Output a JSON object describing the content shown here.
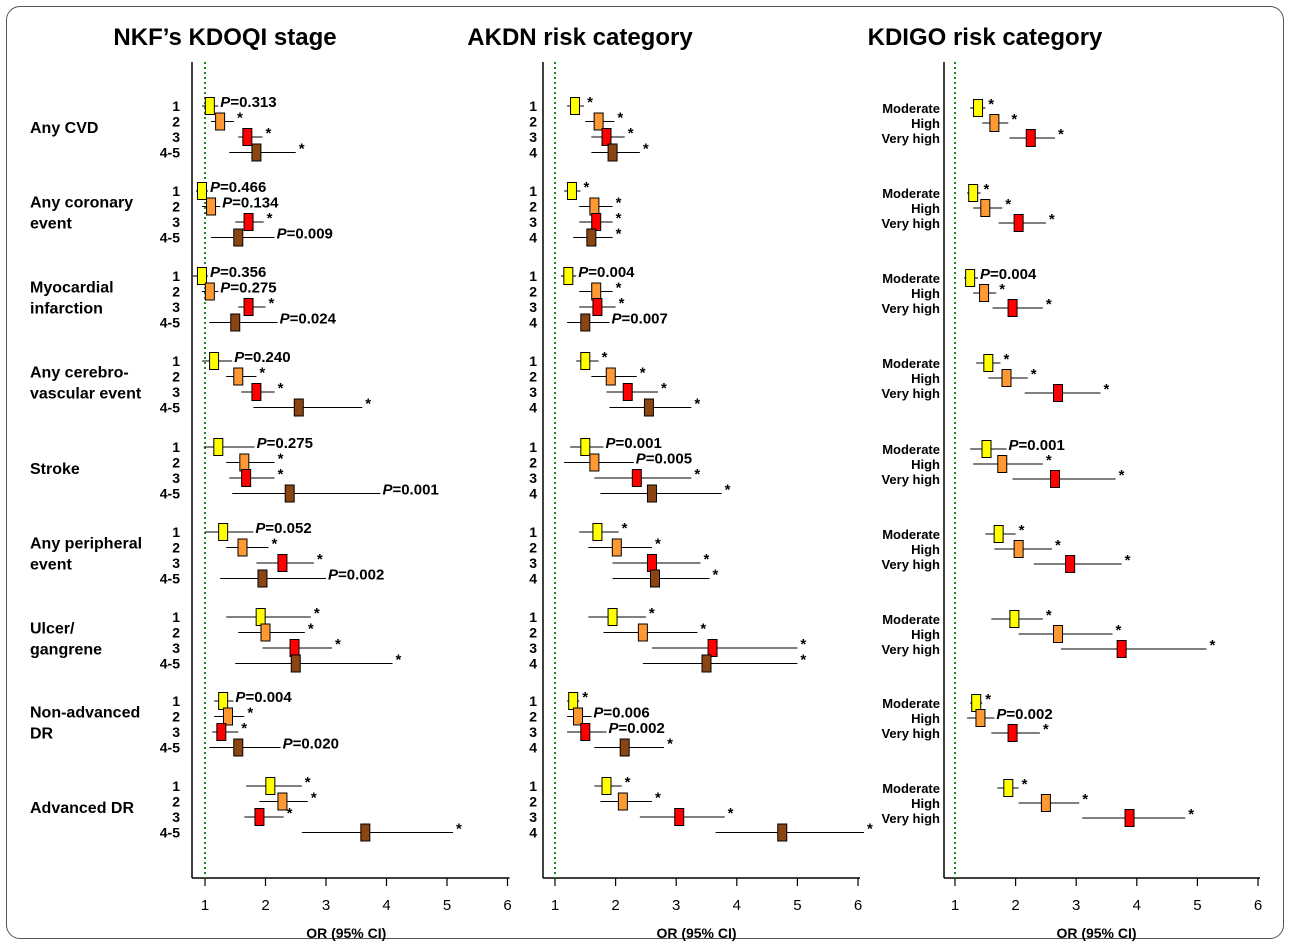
{
  "chart_data": {
    "type": "forest",
    "x_label": "OR (95%  CI)",
    "x_ticks": [
      1,
      2,
      3,
      4,
      5,
      6
    ],
    "outcomes": [
      "Any CVD",
      "Any coronary\nevent",
      "Myocardial\ninfarction",
      "Any cerebro-\nvascular event",
      "Stroke",
      "Any peripheral\nevent",
      "Ulcer/\ngangrene",
      "Non-advanced\nDR",
      "Advanced DR"
    ],
    "panels": [
      {
        "title": "NKF’s KDOQI stage",
        "row_labels": [
          "1",
          "2",
          "3",
          "4-5"
        ],
        "colors": [
          "#ffff00",
          "#ff9933",
          "#ff0000",
          "#8b4513"
        ],
        "reference_line": 1,
        "xlim": [
          0.8,
          6
        ],
        "outcomes": [
          {
            "rows": [
              {
                "or": 1.08,
                "lo": 0.95,
                "hi": 1.22,
                "ann": "P=0.313"
              },
              {
                "or": 1.25,
                "lo": 1.1,
                "hi": 1.48,
                "ann": "*"
              },
              {
                "or": 1.7,
                "lo": 1.55,
                "hi": 1.95,
                "ann": "*"
              },
              {
                "or": 1.85,
                "lo": 1.4,
                "hi": 2.5,
                "ann": "*"
              }
            ]
          },
          {
            "rows": [
              {
                "or": 0.95,
                "lo": 0.85,
                "hi": 1.05,
                "ann": "P=0.466"
              },
              {
                "or": 1.1,
                "lo": 0.95,
                "hi": 1.25,
                "ann": "P=0.134"
              },
              {
                "or": 1.72,
                "lo": 1.5,
                "hi": 1.97,
                "ann": "*"
              },
              {
                "or": 1.55,
                "lo": 1.1,
                "hi": 2.15,
                "ann": "P=0.009"
              }
            ]
          },
          {
            "rows": [
              {
                "or": 0.95,
                "lo": 0.8,
                "hi": 1.05,
                "ann": "P=0.356"
              },
              {
                "or": 1.08,
                "lo": 0.95,
                "hi": 1.22,
                "ann": "P=0.275"
              },
              {
                "or": 1.72,
                "lo": 1.55,
                "hi": 2.0,
                "ann": "*"
              },
              {
                "or": 1.5,
                "lo": 1.07,
                "hi": 2.2,
                "ann": "P=0.024"
              }
            ]
          },
          {
            "rows": [
              {
                "or": 1.15,
                "lo": 0.95,
                "hi": 1.45,
                "ann": "P=0.240"
              },
              {
                "or": 1.55,
                "lo": 1.35,
                "hi": 1.85,
                "ann": "*"
              },
              {
                "or": 1.85,
                "lo": 1.6,
                "hi": 2.15,
                "ann": "*"
              },
              {
                "or": 2.55,
                "lo": 1.8,
                "hi": 3.6,
                "ann": "*"
              }
            ]
          },
          {
            "rows": [
              {
                "or": 1.22,
                "lo": 0.98,
                "hi": 1.82,
                "ann": "P=0.275"
              },
              {
                "or": 1.65,
                "lo": 1.35,
                "hi": 2.15,
                "ann": "*"
              },
              {
                "or": 1.68,
                "lo": 1.4,
                "hi": 2.15,
                "ann": "*"
              },
              {
                "or": 2.4,
                "lo": 1.45,
                "hi": 3.9,
                "ann": "P=0.001"
              }
            ]
          },
          {
            "rows": [
              {
                "or": 1.3,
                "lo": 1.0,
                "hi": 1.8,
                "ann": "P=0.052"
              },
              {
                "or": 1.62,
                "lo": 1.35,
                "hi": 2.05,
                "ann": "*"
              },
              {
                "or": 2.28,
                "lo": 1.85,
                "hi": 2.8,
                "ann": "*"
              },
              {
                "or": 1.95,
                "lo": 1.25,
                "hi": 3.0,
                "ann": "P=0.002"
              }
            ]
          },
          {
            "rows": [
              {
                "or": 1.92,
                "lo": 1.35,
                "hi": 2.75,
                "ann": "*"
              },
              {
                "or": 2.0,
                "lo": 1.55,
                "hi": 2.65,
                "ann": "*"
              },
              {
                "or": 2.48,
                "lo": 1.95,
                "hi": 3.1,
                "ann": "*"
              },
              {
                "or": 2.5,
                "lo": 1.5,
                "hi": 4.1,
                "ann": "*"
              }
            ]
          },
          {
            "rows": [
              {
                "or": 1.3,
                "lo": 1.15,
                "hi": 1.47,
                "ann": "P=0.004"
              },
              {
                "or": 1.38,
                "lo": 1.15,
                "hi": 1.65,
                "ann": "*"
              },
              {
                "or": 1.27,
                "lo": 1.12,
                "hi": 1.55,
                "ann": "*"
              },
              {
                "or": 1.55,
                "lo": 1.07,
                "hi": 2.25,
                "ann": "P=0.020"
              }
            ]
          },
          {
            "rows": [
              {
                "or": 2.08,
                "lo": 1.68,
                "hi": 2.6,
                "ann": "*"
              },
              {
                "or": 2.28,
                "lo": 1.9,
                "hi": 2.7,
                "ann": "*"
              },
              {
                "or": 1.9,
                "lo": 1.65,
                "hi": 2.3,
                "ann": "*"
              },
              {
                "or": 3.65,
                "lo": 2.6,
                "hi": 5.1,
                "ann": "*"
              }
            ]
          }
        ]
      },
      {
        "title": "AKDN risk category",
        "row_labels": [
          "1",
          "2",
          "3",
          "4"
        ],
        "colors": [
          "#ffff00",
          "#ff9933",
          "#ff0000",
          "#8b4513"
        ],
        "reference_line": 1,
        "xlim": [
          0.8,
          6.1
        ],
        "outcomes": [
          {
            "rows": [
              {
                "or": 1.33,
                "lo": 1.2,
                "hi": 1.48,
                "ann": "*"
              },
              {
                "or": 1.72,
                "lo": 1.5,
                "hi": 1.98,
                "ann": "*"
              },
              {
                "or": 1.85,
                "lo": 1.6,
                "hi": 2.15,
                "ann": "*"
              },
              {
                "or": 1.95,
                "lo": 1.6,
                "hi": 2.4,
                "ann": "*"
              }
            ]
          },
          {
            "rows": [
              {
                "or": 1.28,
                "lo": 1.15,
                "hi": 1.42,
                "ann": "*"
              },
              {
                "or": 1.65,
                "lo": 1.4,
                "hi": 1.95,
                "ann": "*"
              },
              {
                "or": 1.68,
                "lo": 1.4,
                "hi": 1.95,
                "ann": "*"
              },
              {
                "or": 1.6,
                "lo": 1.3,
                "hi": 1.95,
                "ann": "*"
              }
            ]
          },
          {
            "rows": [
              {
                "or": 1.22,
                "lo": 1.1,
                "hi": 1.35,
                "ann": "P=0.004"
              },
              {
                "or": 1.68,
                "lo": 1.4,
                "hi": 1.95,
                "ann": "*"
              },
              {
                "or": 1.7,
                "lo": 1.4,
                "hi": 2.0,
                "ann": "*"
              },
              {
                "or": 1.5,
                "lo": 1.2,
                "hi": 1.9,
                "ann": "P=0.007"
              }
            ]
          },
          {
            "rows": [
              {
                "or": 1.5,
                "lo": 1.35,
                "hi": 1.72,
                "ann": "*"
              },
              {
                "or": 1.92,
                "lo": 1.6,
                "hi": 2.35,
                "ann": "*"
              },
              {
                "or": 2.2,
                "lo": 1.85,
                "hi": 2.7,
                "ann": "*"
              },
              {
                "or": 2.55,
                "lo": 1.9,
                "hi": 3.25,
                "ann": "*"
              }
            ]
          },
          {
            "rows": [
              {
                "or": 1.5,
                "lo": 1.25,
                "hi": 1.8,
                "ann": "P=0.001"
              },
              {
                "or": 1.65,
                "lo": 1.15,
                "hi": 2.3,
                "ann": "P=0.005"
              },
              {
                "or": 2.35,
                "lo": 1.65,
                "hi": 3.25,
                "ann": "*"
              },
              {
                "or": 2.6,
                "lo": 1.75,
                "hi": 3.75,
                "ann": "*"
              }
            ]
          },
          {
            "rows": [
              {
                "or": 1.7,
                "lo": 1.4,
                "hi": 2.05,
                "ann": "*"
              },
              {
                "or": 2.02,
                "lo": 1.55,
                "hi": 2.6,
                "ann": "*"
              },
              {
                "or": 2.6,
                "lo": 1.95,
                "hi": 3.4,
                "ann": "*"
              },
              {
                "or": 2.65,
                "lo": 1.95,
                "hi": 3.55,
                "ann": "*"
              }
            ]
          },
          {
            "rows": [
              {
                "or": 1.95,
                "lo": 1.55,
                "hi": 2.5,
                "ann": "*"
              },
              {
                "or": 2.45,
                "lo": 1.8,
                "hi": 3.35,
                "ann": "*"
              },
              {
                "or": 3.6,
                "lo": 2.6,
                "hi": 5.0,
                "ann": "*"
              },
              {
                "or": 3.5,
                "lo": 2.45,
                "hi": 5.0,
                "ann": "*"
              }
            ]
          },
          {
            "rows": [
              {
                "or": 1.3,
                "lo": 1.2,
                "hi": 1.4,
                "ann": "*"
              },
              {
                "or": 1.38,
                "lo": 1.2,
                "hi": 1.6,
                "ann": "P=0.006"
              },
              {
                "or": 1.5,
                "lo": 1.2,
                "hi": 1.85,
                "ann": "P=0.002"
              },
              {
                "or": 2.15,
                "lo": 1.65,
                "hi": 2.8,
                "ann": "*"
              }
            ]
          },
          {
            "rows": [
              {
                "or": 1.85,
                "lo": 1.65,
                "hi": 2.1,
                "ann": "*"
              },
              {
                "or": 2.12,
                "lo": 1.75,
                "hi": 2.6,
                "ann": "*"
              },
              {
                "or": 3.05,
                "lo": 2.4,
                "hi": 3.8,
                "ann": "*"
              },
              {
                "or": 4.75,
                "lo": 3.65,
                "hi": 6.1,
                "ann": "*"
              }
            ]
          }
        ]
      },
      {
        "title": "KDIGO risk category",
        "row_labels": [
          "Moderate",
          "High",
          "Very high"
        ],
        "colors": [
          "#ffff00",
          "#ff9933",
          "#ff0000"
        ],
        "reference_line": 1,
        "xlim": [
          0.8,
          6
        ],
        "outcomes": [
          {
            "rows": [
              {
                "or": 1.38,
                "lo": 1.25,
                "hi": 1.5,
                "ann": "*"
              },
              {
                "or": 1.65,
                "lo": 1.45,
                "hi": 1.88,
                "ann": "*"
              },
              {
                "or": 2.25,
                "lo": 1.9,
                "hi": 2.65,
                "ann": "*"
              }
            ]
          },
          {
            "rows": [
              {
                "or": 1.3,
                "lo": 1.2,
                "hi": 1.42,
                "ann": "*"
              },
              {
                "or": 1.5,
                "lo": 1.3,
                "hi": 1.78,
                "ann": "*"
              },
              {
                "or": 2.05,
                "lo": 1.72,
                "hi": 2.5,
                "ann": "*"
              }
            ]
          },
          {
            "rows": [
              {
                "or": 1.25,
                "lo": 1.15,
                "hi": 1.38,
                "ann": "P=0.004"
              },
              {
                "or": 1.48,
                "lo": 1.3,
                "hi": 1.68,
                "ann": "*"
              },
              {
                "or": 1.95,
                "lo": 1.62,
                "hi": 2.45,
                "ann": "*"
              }
            ]
          },
          {
            "rows": [
              {
                "or": 1.55,
                "lo": 1.35,
                "hi": 1.75,
                "ann": "*"
              },
              {
                "or": 1.85,
                "lo": 1.55,
                "hi": 2.2,
                "ann": "*"
              },
              {
                "or": 2.7,
                "lo": 2.15,
                "hi": 3.4,
                "ann": "*"
              }
            ]
          },
          {
            "rows": [
              {
                "or": 1.52,
                "lo": 1.25,
                "hi": 1.85,
                "ann": "P=0.001"
              },
              {
                "or": 1.78,
                "lo": 1.3,
                "hi": 2.45,
                "ann": "*"
              },
              {
                "or": 2.65,
                "lo": 1.95,
                "hi": 3.65,
                "ann": "*"
              }
            ]
          },
          {
            "rows": [
              {
                "or": 1.72,
                "lo": 1.5,
                "hi": 2.0,
                "ann": "*"
              },
              {
                "or": 2.05,
                "lo": 1.65,
                "hi": 2.6,
                "ann": "*"
              },
              {
                "or": 2.9,
                "lo": 2.3,
                "hi": 3.75,
                "ann": "*"
              }
            ]
          },
          {
            "rows": [
              {
                "or": 1.98,
                "lo": 1.6,
                "hi": 2.45,
                "ann": "*"
              },
              {
                "or": 2.7,
                "lo": 2.05,
                "hi": 3.6,
                "ann": "*"
              },
              {
                "or": 3.75,
                "lo": 2.75,
                "hi": 5.15,
                "ann": "*"
              }
            ]
          },
          {
            "rows": [
              {
                "or": 1.35,
                "lo": 1.25,
                "hi": 1.45,
                "ann": "*"
              },
              {
                "or": 1.42,
                "lo": 1.2,
                "hi": 1.65,
                "ann": "P=0.002"
              },
              {
                "or": 1.95,
                "lo": 1.6,
                "hi": 2.4,
                "ann": "*"
              }
            ]
          },
          {
            "rows": [
              {
                "or": 1.88,
                "lo": 1.7,
                "hi": 2.05,
                "ann": "*"
              },
              {
                "or": 2.5,
                "lo": 2.05,
                "hi": 3.05,
                "ann": "*"
              },
              {
                "or": 3.88,
                "lo": 3.1,
                "hi": 4.8,
                "ann": "*"
              }
            ]
          }
        ]
      }
    ]
  }
}
